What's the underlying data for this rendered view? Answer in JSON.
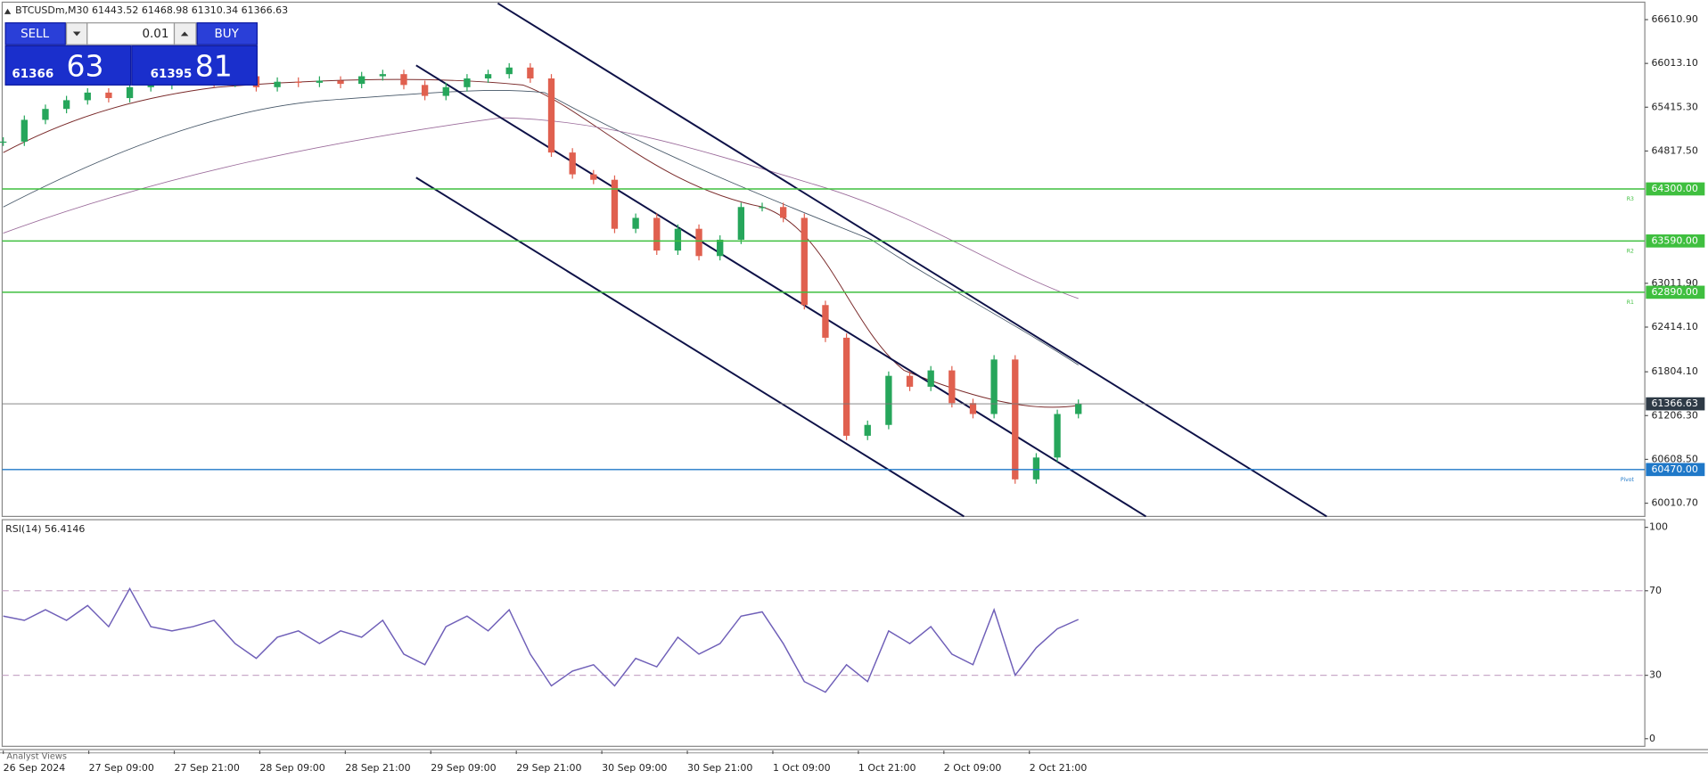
{
  "header": {
    "symbol_info": "BTCUSDm,M30  61443.52 61468.98 61310.34 61366.63"
  },
  "trade_panel": {
    "sell": "SELL",
    "buy": "BUY",
    "lot": "0.01",
    "sell_price_main": "61366",
    "sell_price_big": "63",
    "buy_price_main": "61395",
    "buy_price_big": "81"
  },
  "chart_data": [
    {
      "type": "candlestick",
      "ylim": [
        59830,
        66849
      ],
      "yticks": [
        {
          "value": 66610.9,
          "label": "66610.90"
        },
        {
          "value": 66013.1,
          "label": "66013.10"
        },
        {
          "value": 65415.3,
          "label": "65415.30"
        },
        {
          "value": 64817.5,
          "label": "64817.50"
        },
        {
          "value": 63011.9,
          "label": "63011.90"
        },
        {
          "value": 62414.1,
          "label": "62414.10"
        },
        {
          "value": 61804.1,
          "label": "61804.10"
        },
        {
          "value": 61206.3,
          "label": "61206.30"
        },
        {
          "value": 60608.5,
          "label": "60608.50"
        },
        {
          "value": 60010.7,
          "label": "60010.70"
        }
      ],
      "values": [
        64946,
        65243,
        65392,
        65511,
        65615,
        65540,
        65689,
        65719,
        65778,
        65808,
        65749,
        65838,
        65689,
        65763,
        65749,
        65778,
        65734,
        65838,
        65867,
        65719,
        65570,
        65689,
        65808,
        65867,
        65957,
        65808,
        64797,
        64499,
        64425,
        63756,
        63905,
        63459,
        63756,
        63384,
        63607,
        64053,
        64053,
        63905,
        62715,
        62269,
        60931,
        61079,
        61749,
        61600,
        61823,
        61377,
        61228,
        61972,
        60336,
        60634,
        61228,
        61366.63
      ],
      "levels": [
        {
          "value": 64300,
          "label": "64300.00",
          "tag": "R3",
          "color": "#3fbf3f"
        },
        {
          "value": 63590,
          "label": "63590.00",
          "tag": "R2",
          "color": "#3fbf3f"
        },
        {
          "value": 62890,
          "label": "62890.00",
          "tag": "R1",
          "color": "#3fbf3f"
        },
        {
          "value": 60470,
          "label": "60470.00",
          "tag": "Pivot",
          "color": "#1f78c8"
        }
      ],
      "current_price": {
        "value": 61366.63,
        "label": "61366.63"
      },
      "up_color": "#26a65b",
      "down_color": "#e0604f"
    },
    {
      "type": "line",
      "title": "RSI(14) 56.4146",
      "color": "#6f5fb8",
      "ylim": [
        0,
        100
      ],
      "yticks": [
        100,
        70,
        30,
        0
      ],
      "dashed_levels": [
        70,
        30
      ],
      "values": [
        58,
        56,
        61,
        56,
        63,
        53,
        71,
        53,
        51,
        53,
        56,
        45,
        38,
        48,
        51,
        45,
        51,
        48,
        56,
        40,
        35,
        53,
        58,
        51,
        61,
        40,
        25,
        32,
        35,
        25,
        38,
        34,
        48,
        40,
        45,
        58,
        60,
        45,
        27,
        22,
        35,
        27,
        51,
        45,
        53,
        40,
        35,
        61,
        30,
        43,
        52,
        56.4146
      ]
    }
  ],
  "time_axis": {
    "labels": [
      "26 Sep 2024",
      "27 Sep 09:00",
      "27 Sep 21:00",
      "28 Sep 09:00",
      "28 Sep 21:00",
      "29 Sep 09:00",
      "29 Sep 21:00",
      "30 Sep 09:00",
      "30 Sep 21:00",
      "1 Oct 09:00",
      "1 Oct 21:00",
      "2 Oct 09:00",
      "2 Oct 21:00"
    ]
  },
  "footer": {
    "tab": "Analyst Views"
  }
}
